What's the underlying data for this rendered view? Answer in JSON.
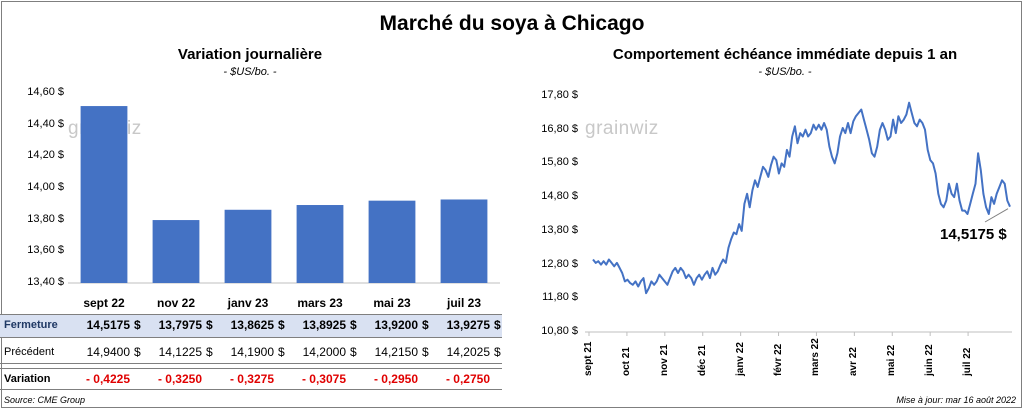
{
  "title": "Marché du soya à Chicago",
  "source": "Source: CME Group",
  "updated": "Mise à jour: mar 16 août 2022",
  "watermark": "grainwiz",
  "colors": {
    "bar": "#4472c4",
    "line": "#4472c4",
    "negative": "#e00000",
    "table_header_bg": "#d9e1f2",
    "border": "#7f7f7f"
  },
  "chart_data": [
    {
      "type": "bar",
      "title": "Variation  journalière",
      "units": "- $US/bo. -",
      "categories": [
        "sept 22",
        "nov 22",
        "janv 23",
        "mars 23",
        "mai 23",
        "juil 23"
      ],
      "values": [
        14.5175,
        13.7975,
        13.8625,
        13.8925,
        13.92,
        13.9275
      ],
      "ylim": [
        13.4,
        14.6
      ],
      "yticks": [
        "14,60 $",
        "14,40 $",
        "14,20 $",
        "14,00 $",
        "13,80 $",
        "13,60 $",
        "13,40 $"
      ],
      "grid": false,
      "table": {
        "rows": [
          {
            "label": "Fermeture",
            "values": [
              "14,5175",
              "13,7975",
              "13,8625",
              "13,8925",
              "13,9200",
              "13,9275"
            ],
            "currency": "$"
          },
          {
            "label": "Précédent",
            "values": [
              "14,9400",
              "14,1225",
              "14,1900",
              "14,2000",
              "14,2150",
              "14,2025"
            ],
            "currency": "$"
          },
          {
            "label": "Variation",
            "values": [
              "- 0,4225",
              "- 0,3250",
              "- 0,3275",
              "- 0,3075",
              "- 0,2950",
              "- 0,2750"
            ],
            "currency": ""
          }
        ]
      }
    },
    {
      "type": "line",
      "title": "Comportement  échéance immédiate depuis 1 an",
      "units": "- $US/bo. -",
      "ylim": [
        10.8,
        17.8
      ],
      "yticks": [
        "17,80 $",
        "16,80 $",
        "15,80 $",
        "14,80 $",
        "13,80 $",
        "12,80 $",
        "11,80 $",
        "10,80 $"
      ],
      "xticks": [
        "sept 21",
        "oct 21",
        "nov 21",
        "déc 21",
        "janv 22",
        "févr 22",
        "mars 22",
        "avr 22",
        "mai 22",
        "juin 22",
        "juil 22"
      ],
      "last_value_label": "14,5175 $",
      "values": [
        12.95,
        12.85,
        12.9,
        12.8,
        12.9,
        12.8,
        12.95,
        12.85,
        12.75,
        12.85,
        12.7,
        12.55,
        12.3,
        12.35,
        12.25,
        12.2,
        12.3,
        12.15,
        12.3,
        12.4,
        11.95,
        12.1,
        12.3,
        12.2,
        12.3,
        12.5,
        12.4,
        12.3,
        12.2,
        12.4,
        12.6,
        12.7,
        12.55,
        12.7,
        12.6,
        12.4,
        12.5,
        12.4,
        12.2,
        12.4,
        12.5,
        12.35,
        12.5,
        12.6,
        12.4,
        12.7,
        12.5,
        12.6,
        12.8,
        12.95,
        12.85,
        13.3,
        13.55,
        13.75,
        13.7,
        14.0,
        13.8,
        14.6,
        14.9,
        14.5,
        15.0,
        15.3,
        15.1,
        15.4,
        15.7,
        15.6,
        15.4,
        15.75,
        16.0,
        15.9,
        15.5,
        15.8,
        15.7,
        16.2,
        16.0,
        16.6,
        16.9,
        16.4,
        16.7,
        16.6,
        16.8,
        16.6,
        16.7,
        16.95,
        16.8,
        16.95,
        16.8,
        17.0,
        16.8,
        16.3,
        16.0,
        15.8,
        16.1,
        16.6,
        16.85,
        16.7,
        17.0,
        16.7,
        17.05,
        17.2,
        17.3,
        17.4,
        17.1,
        16.8,
        16.5,
        16.1,
        16.0,
        16.3,
        16.8,
        17.0,
        16.8,
        16.5,
        16.6,
        17.1,
        16.7,
        17.2,
        17.0,
        17.1,
        17.25,
        17.6,
        17.3,
        17.0,
        16.9,
        17.1,
        17.0,
        16.8,
        16.2,
        15.9,
        15.8,
        15.5,
        14.9,
        14.6,
        14.5,
        14.7,
        15.2,
        14.9,
        14.8,
        15.2,
        14.7,
        14.4,
        14.4,
        14.3,
        14.6,
        14.9,
        15.2,
        16.1,
        15.6,
        14.9,
        14.5,
        14.3,
        14.8,
        14.6,
        14.9,
        15.1,
        15.3,
        15.2,
        14.7,
        14.5175
      ]
    }
  ]
}
